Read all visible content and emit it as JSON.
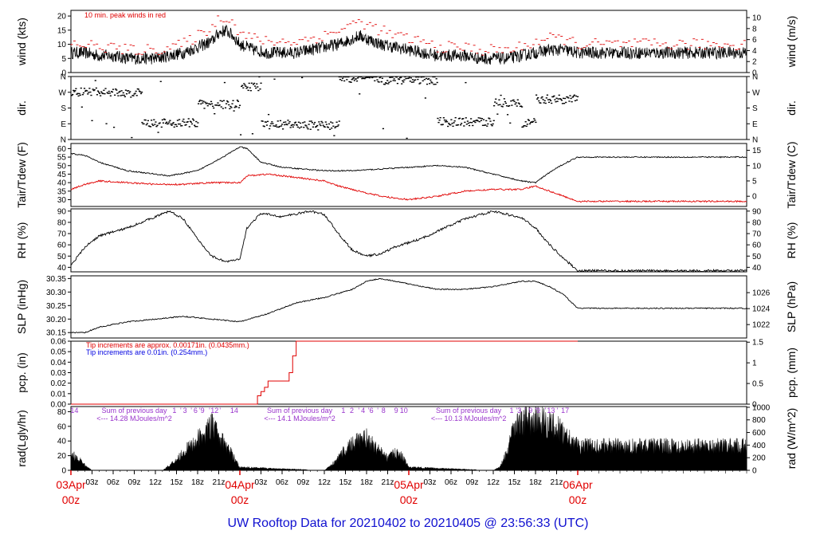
{
  "title": "UW Rooftop Data for 20210402  to  20210405 @ 23:56:33  (UTC)",
  "colors": {
    "title": "#1010d0",
    "peak": "#e00000",
    "dewpoint": "#e00000",
    "tip_old": "#e00000",
    "tip_new": "#0000e0",
    "solar_label": "#9933cc",
    "day_label": "#e00000"
  },
  "time_axis": {
    "hours_span": 96,
    "tick_labels": [
      "03z",
      "06z",
      "09z",
      "12z",
      "15z",
      "18z",
      "21z",
      "03z",
      "06z",
      "09z",
      "12z",
      "15z",
      "18z",
      "21z",
      "03z",
      "06z",
      "09z",
      "12z",
      "15z",
      "18z",
      "21z"
    ],
    "tick_hours": [
      3,
      6,
      9,
      12,
      15,
      18,
      21,
      27,
      30,
      33,
      36,
      39,
      42,
      45,
      51,
      54,
      57,
      60,
      63,
      66,
      69
    ],
    "day_labels": [
      {
        "hour": 0,
        "date": "03Apr",
        "time": "00z"
      },
      {
        "hour": 24,
        "date": "04Apr",
        "time": "00z"
      },
      {
        "hour": 48,
        "date": "05Apr",
        "time": "00z"
      },
      {
        "hour": 72,
        "date": "06Apr",
        "time": "00z"
      }
    ]
  },
  "chart_data": [
    {
      "type": "line",
      "id": "wind",
      "ylabel_left": "wind (kts)",
      "ylabel_right": "wind (m/s)",
      "ylim": [
        0,
        22
      ],
      "yticks_left": [
        0,
        5,
        10,
        15,
        20
      ],
      "yticks_right": [
        0,
        2,
        4,
        6,
        8,
        10
      ],
      "annotation": "10 min. peak winds in red",
      "series": [
        {
          "name": "wind",
          "x": [
            0,
            2,
            4,
            6,
            8,
            10,
            12,
            14,
            16,
            18,
            20,
            21,
            22,
            23,
            24,
            26,
            28,
            30,
            32,
            34,
            36,
            38,
            40,
            41,
            42,
            43,
            44,
            46,
            48,
            50,
            52,
            54,
            56,
            58,
            60,
            62,
            64,
            66,
            68,
            70,
            72
          ],
          "y": [
            7,
            7,
            6,
            6,
            5,
            5,
            5,
            6,
            7,
            9,
            11,
            14,
            15,
            13,
            10,
            8,
            7,
            7,
            7,
            8,
            9,
            10,
            12,
            13,
            12,
            11,
            10,
            9,
            8,
            7,
            6,
            6,
            6,
            5,
            5,
            5,
            6,
            7,
            8,
            8,
            7
          ]
        },
        {
          "name": "10 min. peak winds",
          "x": [
            0,
            2,
            4,
            6,
            8,
            10,
            12,
            14,
            16,
            18,
            20,
            21,
            22,
            23,
            24,
            26,
            28,
            30,
            32,
            34,
            36,
            38,
            40,
            41,
            42,
            43,
            44,
            46,
            48,
            50,
            52,
            54,
            56,
            58,
            60,
            62,
            64,
            66,
            68,
            70,
            72
          ],
          "y": [
            10,
            10,
            9,
            9,
            8,
            8,
            8,
            9,
            10,
            13,
            16,
            19,
            20,
            18,
            14,
            12,
            11,
            11,
            11,
            12,
            13,
            15,
            17,
            18,
            17,
            16,
            15,
            13,
            12,
            11,
            9,
            9,
            9,
            8,
            8,
            8,
            9,
            11,
            12,
            12,
            10
          ]
        }
      ]
    },
    {
      "type": "scatter",
      "id": "dir",
      "ylabel_left": "dir.",
      "ylabel_right": "dir.",
      "ytick_labels": [
        "N",
        "W",
        "S",
        "E",
        "N"
      ],
      "segments": [
        {
          "x": [
            0,
            6
          ],
          "y": 270
        },
        {
          "x": [
            6,
            10
          ],
          "y": 265
        },
        {
          "x": [
            10,
            18
          ],
          "y": 95
        },
        {
          "x": [
            18,
            24
          ],
          "y": 200
        },
        {
          "x": [
            24,
            27
          ],
          "y": 300
        },
        {
          "x": [
            27,
            32
          ],
          "y": 85
        },
        {
          "x": [
            32,
            38
          ],
          "y": 80
        },
        {
          "x": [
            38,
            44
          ],
          "y": 350
        },
        {
          "x": [
            44,
            52
          ],
          "y": 340
        },
        {
          "x": [
            52,
            56
          ],
          "y": 100
        },
        {
          "x": [
            56,
            60
          ],
          "y": 100
        },
        {
          "x": [
            60,
            64
          ],
          "y": 210
        },
        {
          "x": [
            64,
            66
          ],
          "y": 95
        },
        {
          "x": [
            66,
            72
          ],
          "y": 230
        }
      ]
    },
    {
      "type": "line",
      "id": "temp",
      "ylabel_left": "Tair/Tdew (F)",
      "ylabel_right": "Tair/Tdew (C)",
      "ylim": [
        26,
        63
      ],
      "yticks_left": [
        30,
        35,
        40,
        45,
        50,
        55,
        60
      ],
      "yticks_right_c": [
        0,
        5,
        10,
        15
      ],
      "series": [
        {
          "name": "Tair",
          "x": [
            0,
            2,
            4,
            8,
            12,
            14,
            18,
            22,
            24,
            25,
            27,
            30,
            36,
            40,
            44,
            48,
            52,
            56,
            60,
            64,
            66,
            68,
            70,
            72
          ],
          "y": [
            57,
            56,
            52,
            47,
            45,
            44,
            47,
            56,
            61,
            60,
            52,
            49,
            47,
            47,
            48,
            49,
            50,
            49,
            45,
            41,
            40,
            46,
            51,
            55
          ]
        },
        {
          "name": "Tdew",
          "x": [
            0,
            2,
            4,
            8,
            12,
            16,
            20,
            24,
            25,
            28,
            32,
            36,
            38,
            40,
            42,
            44,
            46,
            48,
            52,
            56,
            60,
            64,
            66,
            68,
            70,
            72
          ],
          "y": [
            36,
            39,
            41,
            40,
            39,
            39,
            40,
            40,
            44,
            45,
            43,
            41,
            38,
            36,
            34,
            32,
            31,
            30,
            32,
            35,
            36,
            36,
            38,
            35,
            32,
            29
          ]
        }
      ]
    },
    {
      "type": "line",
      "id": "rh",
      "ylabel_left": "RH (%)",
      "ylabel_right": "RH (%)",
      "ylim": [
        36,
        92
      ],
      "yticks": [
        40,
        50,
        60,
        70,
        80,
        90
      ],
      "series": [
        {
          "name": "RH",
          "x": [
            0,
            2,
            4,
            8,
            12,
            14,
            16,
            18,
            20,
            22,
            24,
            25,
            27,
            30,
            34,
            36,
            38,
            40,
            42,
            44,
            46,
            48,
            50,
            52,
            56,
            60,
            64,
            66,
            68,
            70,
            72
          ],
          "y": [
            42,
            58,
            68,
            75,
            85,
            90,
            83,
            65,
            50,
            45,
            47,
            75,
            88,
            85,
            90,
            87,
            70,
            55,
            50,
            52,
            58,
            62,
            66,
            72,
            83,
            90,
            84,
            75,
            60,
            48,
            37
          ]
        }
      ]
    },
    {
      "type": "line",
      "id": "pressure",
      "ylabel_left": "SLP (inHg)",
      "ylabel_right": "SLP (hPa)",
      "ylim": [
        30.13,
        30.36
      ],
      "yticks_left": [
        30.15,
        30.2,
        30.25,
        30.3,
        30.35
      ],
      "yticks_right_hpa": [
        1022,
        1024,
        1026
      ],
      "series": [
        {
          "name": "SLP",
          "x": [
            0,
            2,
            4,
            8,
            12,
            16,
            20,
            24,
            28,
            32,
            36,
            40,
            42,
            44,
            46,
            48,
            52,
            56,
            60,
            64,
            66,
            68,
            70,
            72
          ],
          "y": [
            30.15,
            30.15,
            30.17,
            30.19,
            30.2,
            30.21,
            30.2,
            30.19,
            30.22,
            30.26,
            30.28,
            30.31,
            30.34,
            30.35,
            30.34,
            30.33,
            30.31,
            30.31,
            30.32,
            30.34,
            30.34,
            30.32,
            30.29,
            30.24
          ]
        }
      ]
    },
    {
      "type": "line",
      "id": "precip",
      "ylabel_left": "pcp. (in)",
      "ylabel_right": "pcp. (mm)",
      "ylim": [
        0,
        0.06
      ],
      "yticks_left": [
        0,
        0.01,
        0.02,
        0.03,
        0.04,
        0.05,
        0.06
      ],
      "yticks_right_mm": [
        0,
        0.5,
        1,
        1.5
      ],
      "notes": [
        "Tip increments are approx. 0.00171in. (0.0435mm.)",
        "Tip increments are 0.01in. (0.254mm.)"
      ],
      "series": [
        {
          "name": "accumulated precipitation",
          "x": [
            0,
            26,
            26.5,
            27,
            27.5,
            28,
            31,
            31.5,
            32,
            72
          ],
          "y": [
            0,
            0,
            0.008,
            0.012,
            0.016,
            0.022,
            0.03,
            0.046,
            0.06,
            0.06
          ]
        }
      ]
    },
    {
      "type": "area",
      "id": "radiation",
      "ylabel_left": "rad(Lgly/hr)",
      "ylabel_right": "rad (W/m^2)",
      "ylim": [
        0,
        87
      ],
      "yticks_left": [
        0,
        20,
        40,
        60,
        80
      ],
      "yticks_right_w": [
        0,
        200,
        400,
        600,
        800,
        1000
      ],
      "daily_labels": [
        {
          "hour": 0.5,
          "text": "14"
        },
        {
          "hour": 9,
          "text": "Sum of previous day"
        },
        {
          "hour": 9,
          "text": "<--- 14.28 MJoules/m^2"
        },
        {
          "hour": 32.5,
          "text": "Sum of previous day"
        },
        {
          "hour": 32.5,
          "text": "<--- 14.1 MJoules/m^2"
        },
        {
          "hour": 56.5,
          "text": "Sum of previous day"
        },
        {
          "hour": 56.5,
          "text": "<--- 10.13 MJoules/m^2"
        }
      ],
      "hour_marks": [
        {
          "hour": 14.7,
          "text": "1"
        },
        {
          "hour": 15.6,
          "text": "'"
        },
        {
          "hour": 16.2,
          "text": "3"
        },
        {
          "hour": 17.1,
          "text": "'"
        },
        {
          "hour": 17.7,
          "text": "6"
        },
        {
          "hour": 18.6,
          "text": "'9"
        },
        {
          "hour": 19.7,
          "text": "'"
        },
        {
          "hour": 20.4,
          "text": "12"
        },
        {
          "hour": 21.2,
          "text": "'"
        },
        {
          "hour": 23.2,
          "text": "14"
        },
        {
          "hour": 38.7,
          "text": "1"
        },
        {
          "hour": 39.9,
          "text": "2"
        },
        {
          "hour": 40.9,
          "text": "'"
        },
        {
          "hour": 41.5,
          "text": "4"
        },
        {
          "hour": 42.6,
          "text": "'6"
        },
        {
          "hour": 43.6,
          "text": "'"
        },
        {
          "hour": 44.4,
          "text": "8"
        },
        {
          "hour": 46.2,
          "text": "9"
        },
        {
          "hour": 47.3,
          "text": "10"
        },
        {
          "hour": 62.6,
          "text": "1"
        },
        {
          "hour": 63.6,
          "text": "'3"
        },
        {
          "hour": 64.5,
          "text": "'"
        },
        {
          "hour": 65.3,
          "text": "9"
        },
        {
          "hour": 66.3,
          "text": "'9"
        },
        {
          "hour": 67.4,
          "text": "'"
        },
        {
          "hour": 68.2,
          "text": "13"
        },
        {
          "hour": 69.1,
          "text": "'"
        },
        {
          "hour": 70.2,
          "text": "17"
        }
      ],
      "series": [
        {
          "name": "solar radiation",
          "x": [
            0,
            0.5,
            1,
            2,
            3,
            13,
            14,
            15,
            16,
            17,
            18,
            19,
            19.5,
            20,
            20.5,
            21,
            22,
            23,
            24,
            36,
            37,
            38,
            39,
            40,
            41,
            42,
            43,
            44,
            45,
            46,
            47,
            48,
            60,
            61,
            62,
            63,
            64,
            65,
            66,
            67,
            68,
            69,
            70,
            71,
            72
          ],
          "y": [
            20,
            24,
            20,
            8,
            0,
            0,
            8,
            18,
            30,
            40,
            50,
            60,
            66,
            72,
            68,
            55,
            40,
            25,
            5,
            0,
            8,
            20,
            35,
            45,
            48,
            52,
            40,
            30,
            20,
            28,
            24,
            5,
            0,
            6,
            30,
            70,
            80,
            85,
            83,
            80,
            76,
            70,
            62,
            52,
            40
          ]
        }
      ]
    }
  ]
}
